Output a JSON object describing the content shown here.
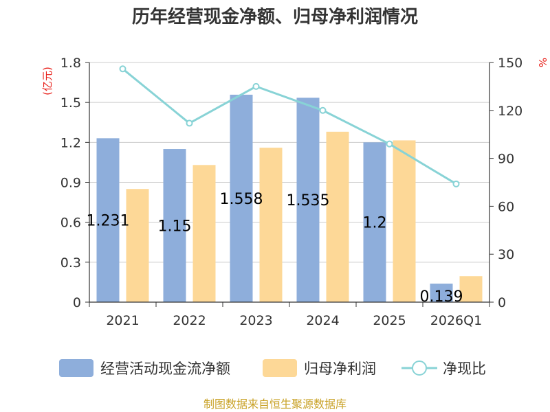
{
  "chart_data": {
    "type": "bar",
    "title": "历年经营现金净额、归母净利润情况",
    "categories": [
      "2021",
      "2022",
      "2023",
      "2024",
      "2025",
      "2026Q1"
    ],
    "left_axis": {
      "unit": "(亿元)",
      "min": 0,
      "max": 1.8,
      "ticks": [
        "0",
        "0.3",
        "0.6",
        "0.9",
        "1.2",
        "1.5",
        "1.8"
      ]
    },
    "right_axis": {
      "unit": "%",
      "min": 0,
      "max": 150,
      "ticks": [
        "0",
        "30",
        "60",
        "90",
        "120",
        "150"
      ]
    },
    "series": [
      {
        "name": "经营活动现金流净额",
        "kind": "bar",
        "axis": "left",
        "color": "#8eaedb",
        "values": [
          1.231,
          1.15,
          1.558,
          1.535,
          1.2,
          0.139
        ],
        "labels": [
          "1.231",
          "1.15",
          "1.558",
          "1.535",
          "1.2",
          "0.139"
        ]
      },
      {
        "name": "归母净利润",
        "kind": "bar",
        "axis": "left",
        "color": "#fdd897",
        "values": [
          0.85,
          1.03,
          1.16,
          1.28,
          1.215,
          0.195
        ]
      },
      {
        "name": "净现比",
        "kind": "line",
        "axis": "right",
        "color": "#88d3d6",
        "values": [
          146,
          112,
          135,
          120,
          99,
          74
        ]
      }
    ],
    "source": "制图数据来自恒生聚源数据库",
    "colors": {
      "axis": "#333333",
      "grid": "#cccccc",
      "unit": "#e8201a",
      "source": "#c9a227"
    }
  }
}
